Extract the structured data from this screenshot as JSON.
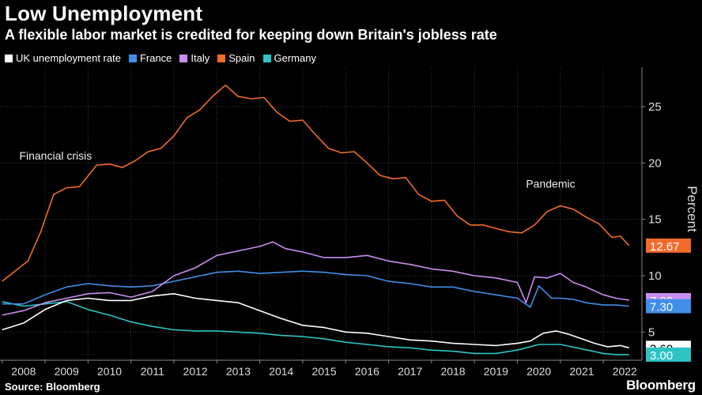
{
  "header": {
    "title": "Low Unemployment",
    "subtitle": "A flexible labor market is credited for keeping down Britain's jobless rate"
  },
  "footer": {
    "source": "Source: Bloomberg",
    "brand": "Bloomberg"
  },
  "colors": {
    "UK": "#ffffff",
    "France": "#3f8fe8",
    "Italy": "#c98ef2",
    "Spain": "#f26b2a",
    "Germany": "#2ec4c4"
  },
  "chart_data": {
    "type": "line",
    "ylabel": "Percent",
    "ylim": [
      2.5,
      28.5
    ],
    "yticks": [
      5,
      10,
      15,
      20,
      25
    ],
    "xlim": [
      2007.95,
      2022.9
    ],
    "xticks": [
      "2008",
      "2009",
      "2010",
      "2011",
      "2012",
      "2013",
      "2014",
      "2015",
      "2016",
      "2017",
      "2018",
      "2019",
      "2020",
      "2021",
      "2022"
    ],
    "annotations": [
      {
        "text": "Financial crisis",
        "x": 2008.4,
        "y": 20.3
      },
      {
        "text": "Pandemic",
        "x": 2020.2,
        "y": 17.8
      }
    ],
    "end_labels": [
      {
        "series": "Spain",
        "text": "12.67",
        "value": 12.67
      },
      {
        "series": "Italy",
        "text": "7.83",
        "value": 7.83
      },
      {
        "series": "France",
        "text": "7.30",
        "value": 7.3
      },
      {
        "series": "UK",
        "text": "3.60",
        "value": 3.6
      },
      {
        "series": "Germany",
        "text": "3.00",
        "value": 3.0
      }
    ],
    "series": [
      {
        "name": "UK unemployment rate",
        "key": "UK",
        "x": [
          2008.0,
          2008.5,
          2009.0,
          2009.5,
          2010.0,
          2010.5,
          2011.0,
          2011.5,
          2012.0,
          2012.5,
          2013.0,
          2013.5,
          2014.0,
          2014.5,
          2015.0,
          2015.5,
          2016.0,
          2016.5,
          2017.0,
          2017.5,
          2018.0,
          2018.5,
          2019.0,
          2019.5,
          2020.0,
          2020.3,
          2020.6,
          2020.9,
          2021.2,
          2021.5,
          2021.8,
          2022.1,
          2022.4,
          2022.6
        ],
        "y": [
          5.2,
          5.8,
          7.0,
          7.8,
          8.0,
          7.8,
          7.8,
          8.2,
          8.4,
          8.0,
          7.8,
          7.6,
          6.9,
          6.2,
          5.6,
          5.4,
          5.0,
          4.9,
          4.6,
          4.3,
          4.2,
          4.0,
          3.9,
          3.8,
          4.0,
          4.2,
          4.9,
          5.1,
          4.8,
          4.4,
          4.0,
          3.7,
          3.8,
          3.6
        ]
      },
      {
        "name": "France",
        "key": "France",
        "x": [
          2008.0,
          2008.5,
          2009.0,
          2009.5,
          2010.0,
          2010.5,
          2011.0,
          2011.5,
          2012.0,
          2012.5,
          2013.0,
          2013.5,
          2014.0,
          2014.5,
          2015.0,
          2015.5,
          2016.0,
          2016.5,
          2017.0,
          2017.5,
          2018.0,
          2018.5,
          2019.0,
          2019.5,
          2020.0,
          2020.3,
          2020.5,
          2020.8,
          2021.0,
          2021.3,
          2021.6,
          2022.0,
          2022.3,
          2022.6
        ],
        "y": [
          7.5,
          7.5,
          8.3,
          9.0,
          9.3,
          9.1,
          9.0,
          9.1,
          9.5,
          9.9,
          10.3,
          10.4,
          10.2,
          10.3,
          10.4,
          10.3,
          10.1,
          10.0,
          9.5,
          9.3,
          9.0,
          9.0,
          8.6,
          8.3,
          8.0,
          7.2,
          9.1,
          8.0,
          8.0,
          7.9,
          7.6,
          7.4,
          7.4,
          7.3
        ]
      },
      {
        "name": "Italy",
        "key": "Italy",
        "x": [
          2008.0,
          2008.5,
          2009.0,
          2009.5,
          2010.0,
          2010.5,
          2011.0,
          2011.5,
          2012.0,
          2012.5,
          2013.0,
          2013.5,
          2014.0,
          2014.3,
          2014.6,
          2015.0,
          2015.5,
          2016.0,
          2016.5,
          2017.0,
          2017.5,
          2018.0,
          2018.5,
          2019.0,
          2019.5,
          2020.0,
          2020.2,
          2020.4,
          2020.7,
          2021.0,
          2021.3,
          2021.6,
          2022.0,
          2022.3,
          2022.6
        ],
        "y": [
          6.5,
          6.9,
          7.6,
          8.0,
          8.4,
          8.5,
          8.1,
          8.6,
          10.0,
          10.7,
          11.8,
          12.2,
          12.6,
          13.0,
          12.4,
          12.1,
          11.6,
          11.6,
          11.8,
          11.3,
          11.0,
          10.6,
          10.4,
          10.0,
          9.8,
          9.4,
          7.6,
          9.9,
          9.8,
          10.2,
          9.4,
          9.0,
          8.3,
          8.0,
          7.83
        ]
      },
      {
        "name": "Spain",
        "key": "Spain",
        "x": [
          2008.0,
          2008.3,
          2008.6,
          2008.9,
          2009.2,
          2009.5,
          2009.8,
          2010.2,
          2010.5,
          2010.8,
          2011.1,
          2011.4,
          2011.7,
          2012.0,
          2012.3,
          2012.6,
          2012.9,
          2013.2,
          2013.5,
          2013.8,
          2014.1,
          2014.4,
          2014.7,
          2015.0,
          2015.3,
          2015.6,
          2015.9,
          2016.2,
          2016.5,
          2016.8,
          2017.1,
          2017.4,
          2017.7,
          2018.0,
          2018.3,
          2018.6,
          2018.9,
          2019.2,
          2019.5,
          2019.8,
          2020.1,
          2020.4,
          2020.7,
          2021.0,
          2021.3,
          2021.6,
          2021.9,
          2022.2,
          2022.4,
          2022.6
        ],
        "y": [
          9.5,
          10.4,
          11.3,
          13.9,
          17.2,
          17.8,
          17.9,
          19.8,
          19.9,
          19.6,
          20.2,
          21.0,
          21.3,
          22.4,
          24.0,
          24.7,
          25.9,
          26.9,
          25.9,
          25.7,
          25.8,
          24.5,
          23.7,
          23.8,
          22.5,
          21.3,
          20.9,
          21.0,
          20.0,
          18.9,
          18.6,
          18.7,
          17.2,
          16.6,
          16.7,
          15.3,
          14.5,
          14.5,
          14.2,
          13.9,
          13.8,
          14.5,
          15.7,
          16.2,
          15.9,
          15.2,
          14.6,
          13.4,
          13.5,
          12.67
        ]
      },
      {
        "name": "Germany",
        "key": "Germany",
        "x": [
          2008.0,
          2008.5,
          2009.0,
          2009.5,
          2010.0,
          2010.5,
          2011.0,
          2011.5,
          2012.0,
          2012.5,
          2013.0,
          2013.5,
          2014.0,
          2014.5,
          2015.0,
          2015.5,
          2016.0,
          2016.5,
          2017.0,
          2017.5,
          2018.0,
          2018.5,
          2019.0,
          2019.5,
          2020.0,
          2020.5,
          2021.0,
          2021.5,
          2022.0,
          2022.3,
          2022.6
        ],
        "y": [
          7.7,
          7.3,
          7.5,
          7.7,
          7.0,
          6.5,
          5.9,
          5.5,
          5.2,
          5.1,
          5.1,
          5.0,
          4.9,
          4.7,
          4.6,
          4.4,
          4.1,
          3.9,
          3.7,
          3.6,
          3.4,
          3.3,
          3.1,
          3.1,
          3.4,
          3.9,
          3.9,
          3.5,
          3.1,
          3.0,
          3.0
        ]
      }
    ]
  }
}
